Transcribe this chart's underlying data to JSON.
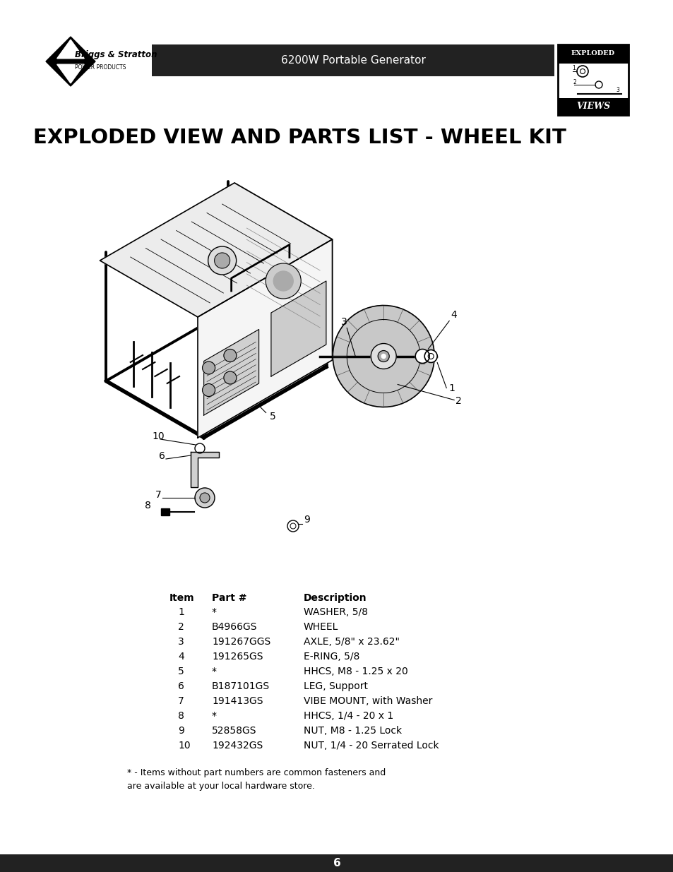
{
  "page_title": "6200W Portable Generator",
  "section_title": "EXPLODED VIEW AND PARTS LIST - WHEEL KIT",
  "bg_color": "#ffffff",
  "header_bar_color": "#222222",
  "header_text_color": "#ffffff",
  "footer_bar_color": "#222222",
  "footer_text": "6",
  "footer_text_color": "#ffffff",
  "parts_table": {
    "headers": [
      "Item",
      "Part #",
      "Description"
    ],
    "rows": [
      [
        "1",
        "*",
        "WASHER, 5/8"
      ],
      [
        "2",
        "B4966GS",
        "WHEEL"
      ],
      [
        "3",
        "191267GGS",
        "AXLE, 5/8\" x 23.62\""
      ],
      [
        "4",
        "191265GS",
        "E-RING, 5/8"
      ],
      [
        "5",
        "*",
        "HHCS, M8 - 1.25 x 20"
      ],
      [
        "6",
        "B187101GS",
        "LEG, Support"
      ],
      [
        "7",
        "191413GS",
        "VIBE MOUNT, with Washer"
      ],
      [
        "8",
        "*",
        "HHCS, 1/4 - 20 x 1"
      ],
      [
        "9",
        "52858GS",
        "NUT, M8 - 1.25 Lock"
      ],
      [
        "10",
        "192432GS",
        "NUT, 1/4 - 20 Serrated Lock"
      ]
    ]
  },
  "footnote": "* - Items without part numbers are common fasteners and\nare available at your local hardware store.",
  "logo_text1": "Briggs & Stratton",
  "logo_text2": "POWER PRODUCTS",
  "exploded_label": "EXPLODED",
  "views_label": "VIEWS"
}
